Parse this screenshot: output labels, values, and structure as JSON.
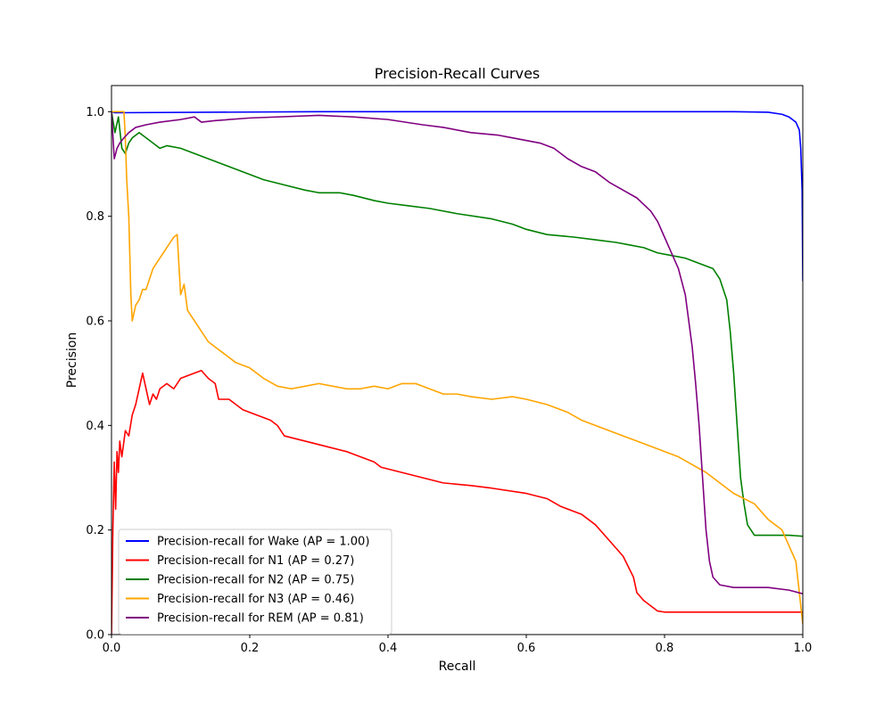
{
  "chart_data": {
    "type": "line",
    "title": "Precision-Recall Curves",
    "xlabel": "Recall",
    "ylabel": "Precision",
    "xlim": [
      0.0,
      1.0
    ],
    "ylim": [
      0.0,
      1.05
    ],
    "xticks": [
      "0.0",
      "0.2",
      "0.4",
      "0.6",
      "0.8",
      "1.0"
    ],
    "yticks": [
      "0.0",
      "0.2",
      "0.4",
      "0.6",
      "0.8",
      "1.0"
    ],
    "grid": false,
    "legend_position": "lower-left",
    "series": [
      {
        "name": "Precision-recall for Wake (AP = 1.00)",
        "color": "#0000ff",
        "points": [
          [
            0.0,
            1.0
          ],
          [
            0.005,
            0.998
          ],
          [
            0.3,
            1.0
          ],
          [
            0.6,
            1.0
          ],
          [
            0.9,
            1.0
          ],
          [
            0.95,
            0.999
          ],
          [
            0.97,
            0.995
          ],
          [
            0.98,
            0.99
          ],
          [
            0.99,
            0.98
          ],
          [
            0.995,
            0.965
          ],
          [
            0.997,
            0.93
          ],
          [
            0.999,
            0.85
          ],
          [
            1.0,
            0.676
          ]
        ]
      },
      {
        "name": "Precision-recall for N1 (AP = 0.27)",
        "color": "#ff0000",
        "points": [
          [
            0.0,
            0.0
          ],
          [
            0.002,
            0.2
          ],
          [
            0.004,
            0.33
          ],
          [
            0.006,
            0.24
          ],
          [
            0.008,
            0.35
          ],
          [
            0.01,
            0.31
          ],
          [
            0.012,
            0.37
          ],
          [
            0.015,
            0.34
          ],
          [
            0.02,
            0.39
          ],
          [
            0.025,
            0.38
          ],
          [
            0.03,
            0.42
          ],
          [
            0.035,
            0.44
          ],
          [
            0.04,
            0.47
          ],
          [
            0.045,
            0.5
          ],
          [
            0.05,
            0.47
          ],
          [
            0.055,
            0.44
          ],
          [
            0.06,
            0.46
          ],
          [
            0.065,
            0.45
          ],
          [
            0.07,
            0.47
          ],
          [
            0.08,
            0.48
          ],
          [
            0.09,
            0.47
          ],
          [
            0.1,
            0.49
          ],
          [
            0.12,
            0.5
          ],
          [
            0.13,
            0.505
          ],
          [
            0.14,
            0.49
          ],
          [
            0.15,
            0.48
          ],
          [
            0.155,
            0.45
          ],
          [
            0.17,
            0.45
          ],
          [
            0.19,
            0.43
          ],
          [
            0.21,
            0.42
          ],
          [
            0.23,
            0.41
          ],
          [
            0.24,
            0.4
          ],
          [
            0.25,
            0.38
          ],
          [
            0.28,
            0.37
          ],
          [
            0.31,
            0.36
          ],
          [
            0.34,
            0.35
          ],
          [
            0.36,
            0.34
          ],
          [
            0.38,
            0.33
          ],
          [
            0.39,
            0.32
          ],
          [
            0.42,
            0.31
          ],
          [
            0.45,
            0.3
          ],
          [
            0.48,
            0.29
          ],
          [
            0.52,
            0.285
          ],
          [
            0.55,
            0.28
          ],
          [
            0.6,
            0.27
          ],
          [
            0.63,
            0.26
          ],
          [
            0.65,
            0.245
          ],
          [
            0.68,
            0.23
          ],
          [
            0.7,
            0.21
          ],
          [
            0.72,
            0.18
          ],
          [
            0.74,
            0.15
          ],
          [
            0.755,
            0.11
          ],
          [
            0.76,
            0.08
          ],
          [
            0.77,
            0.065
          ],
          [
            0.78,
            0.055
          ],
          [
            0.79,
            0.045
          ],
          [
            0.8,
            0.043
          ],
          [
            0.85,
            0.043
          ],
          [
            0.9,
            0.043
          ],
          [
            0.95,
            0.043
          ],
          [
            1.0,
            0.043
          ]
        ]
      },
      {
        "name": "Precision-recall for N2 (AP = 0.75)",
        "color": "#008000",
        "points": [
          [
            0.0,
            1.0
          ],
          [
            0.005,
            0.96
          ],
          [
            0.01,
            0.99
          ],
          [
            0.015,
            0.93
          ],
          [
            0.02,
            0.92
          ],
          [
            0.025,
            0.94
          ],
          [
            0.03,
            0.95
          ],
          [
            0.04,
            0.96
          ],
          [
            0.05,
            0.95
          ],
          [
            0.06,
            0.94
          ],
          [
            0.07,
            0.93
          ],
          [
            0.08,
            0.935
          ],
          [
            0.1,
            0.93
          ],
          [
            0.12,
            0.92
          ],
          [
            0.14,
            0.91
          ],
          [
            0.16,
            0.9
          ],
          [
            0.18,
            0.89
          ],
          [
            0.2,
            0.88
          ],
          [
            0.22,
            0.87
          ],
          [
            0.25,
            0.86
          ],
          [
            0.28,
            0.85
          ],
          [
            0.3,
            0.845
          ],
          [
            0.33,
            0.845
          ],
          [
            0.35,
            0.84
          ],
          [
            0.38,
            0.83
          ],
          [
            0.4,
            0.825
          ],
          [
            0.43,
            0.82
          ],
          [
            0.46,
            0.815
          ],
          [
            0.5,
            0.805
          ],
          [
            0.55,
            0.795
          ],
          [
            0.58,
            0.785
          ],
          [
            0.6,
            0.775
          ],
          [
            0.63,
            0.765
          ],
          [
            0.67,
            0.76
          ],
          [
            0.7,
            0.755
          ],
          [
            0.73,
            0.75
          ],
          [
            0.75,
            0.745
          ],
          [
            0.77,
            0.74
          ],
          [
            0.79,
            0.73
          ],
          [
            0.81,
            0.725
          ],
          [
            0.83,
            0.72
          ],
          [
            0.85,
            0.71
          ],
          [
            0.87,
            0.7
          ],
          [
            0.88,
            0.68
          ],
          [
            0.89,
            0.64
          ],
          [
            0.895,
            0.58
          ],
          [
            0.9,
            0.5
          ],
          [
            0.905,
            0.4
          ],
          [
            0.91,
            0.3
          ],
          [
            0.915,
            0.25
          ],
          [
            0.92,
            0.21
          ],
          [
            0.93,
            0.19
          ],
          [
            0.95,
            0.19
          ],
          [
            0.98,
            0.19
          ],
          [
            1.0,
            0.188
          ]
        ]
      },
      {
        "name": "Precision-recall for N3 (AP = 0.46)",
        "color": "#ffa500",
        "points": [
          [
            0.0,
            1.0
          ],
          [
            0.018,
            1.0
          ],
          [
            0.02,
            0.95
          ],
          [
            0.022,
            0.87
          ],
          [
            0.025,
            0.8
          ],
          [
            0.028,
            0.65
          ],
          [
            0.03,
            0.6
          ],
          [
            0.035,
            0.63
          ],
          [
            0.04,
            0.64
          ],
          [
            0.045,
            0.66
          ],
          [
            0.05,
            0.66
          ],
          [
            0.06,
            0.7
          ],
          [
            0.07,
            0.72
          ],
          [
            0.08,
            0.74
          ],
          [
            0.09,
            0.76
          ],
          [
            0.095,
            0.765
          ],
          [
            0.1,
            0.65
          ],
          [
            0.105,
            0.67
          ],
          [
            0.11,
            0.62
          ],
          [
            0.12,
            0.6
          ],
          [
            0.13,
            0.58
          ],
          [
            0.14,
            0.56
          ],
          [
            0.15,
            0.55
          ],
          [
            0.16,
            0.54
          ],
          [
            0.17,
            0.53
          ],
          [
            0.18,
            0.52
          ],
          [
            0.2,
            0.51
          ],
          [
            0.22,
            0.49
          ],
          [
            0.24,
            0.475
          ],
          [
            0.26,
            0.47
          ],
          [
            0.28,
            0.475
          ],
          [
            0.3,
            0.48
          ],
          [
            0.32,
            0.475
          ],
          [
            0.34,
            0.47
          ],
          [
            0.36,
            0.47
          ],
          [
            0.38,
            0.475
          ],
          [
            0.4,
            0.47
          ],
          [
            0.42,
            0.48
          ],
          [
            0.44,
            0.48
          ],
          [
            0.46,
            0.47
          ],
          [
            0.48,
            0.46
          ],
          [
            0.5,
            0.46
          ],
          [
            0.52,
            0.455
          ],
          [
            0.55,
            0.45
          ],
          [
            0.58,
            0.455
          ],
          [
            0.6,
            0.45
          ],
          [
            0.63,
            0.44
          ],
          [
            0.66,
            0.425
          ],
          [
            0.68,
            0.41
          ],
          [
            0.7,
            0.4
          ],
          [
            0.72,
            0.39
          ],
          [
            0.74,
            0.38
          ],
          [
            0.76,
            0.37
          ],
          [
            0.78,
            0.36
          ],
          [
            0.8,
            0.35
          ],
          [
            0.82,
            0.34
          ],
          [
            0.84,
            0.325
          ],
          [
            0.86,
            0.31
          ],
          [
            0.88,
            0.29
          ],
          [
            0.9,
            0.27
          ],
          [
            0.93,
            0.25
          ],
          [
            0.95,
            0.22
          ],
          [
            0.97,
            0.2
          ],
          [
            0.99,
            0.14
          ],
          [
            1.0,
            0.02
          ]
        ]
      },
      {
        "name": "Precision-recall for REM (AP = 0.81)",
        "color": "#800080",
        "points": [
          [
            0.0,
            1.0
          ],
          [
            0.004,
            0.91
          ],
          [
            0.008,
            0.93
          ],
          [
            0.012,
            0.94
          ],
          [
            0.018,
            0.95
          ],
          [
            0.025,
            0.96
          ],
          [
            0.035,
            0.97
          ],
          [
            0.05,
            0.975
          ],
          [
            0.07,
            0.98
          ],
          [
            0.1,
            0.985
          ],
          [
            0.12,
            0.99
          ],
          [
            0.13,
            0.98
          ],
          [
            0.15,
            0.983
          ],
          [
            0.2,
            0.988
          ],
          [
            0.3,
            0.993
          ],
          [
            0.35,
            0.99
          ],
          [
            0.4,
            0.985
          ],
          [
            0.45,
            0.975
          ],
          [
            0.48,
            0.97
          ],
          [
            0.52,
            0.96
          ],
          [
            0.56,
            0.955
          ],
          [
            0.58,
            0.95
          ],
          [
            0.62,
            0.94
          ],
          [
            0.64,
            0.93
          ],
          [
            0.66,
            0.91
          ],
          [
            0.68,
            0.895
          ],
          [
            0.7,
            0.885
          ],
          [
            0.72,
            0.865
          ],
          [
            0.74,
            0.85
          ],
          [
            0.76,
            0.835
          ],
          [
            0.78,
            0.81
          ],
          [
            0.79,
            0.79
          ],
          [
            0.8,
            0.76
          ],
          [
            0.81,
            0.73
          ],
          [
            0.82,
            0.7
          ],
          [
            0.83,
            0.65
          ],
          [
            0.84,
            0.55
          ],
          [
            0.845,
            0.48
          ],
          [
            0.85,
            0.4
          ],
          [
            0.855,
            0.3
          ],
          [
            0.86,
            0.2
          ],
          [
            0.865,
            0.14
          ],
          [
            0.87,
            0.11
          ],
          [
            0.88,
            0.095
          ],
          [
            0.9,
            0.09
          ],
          [
            0.95,
            0.09
          ],
          [
            0.98,
            0.085
          ],
          [
            1.0,
            0.078
          ]
        ]
      }
    ]
  }
}
